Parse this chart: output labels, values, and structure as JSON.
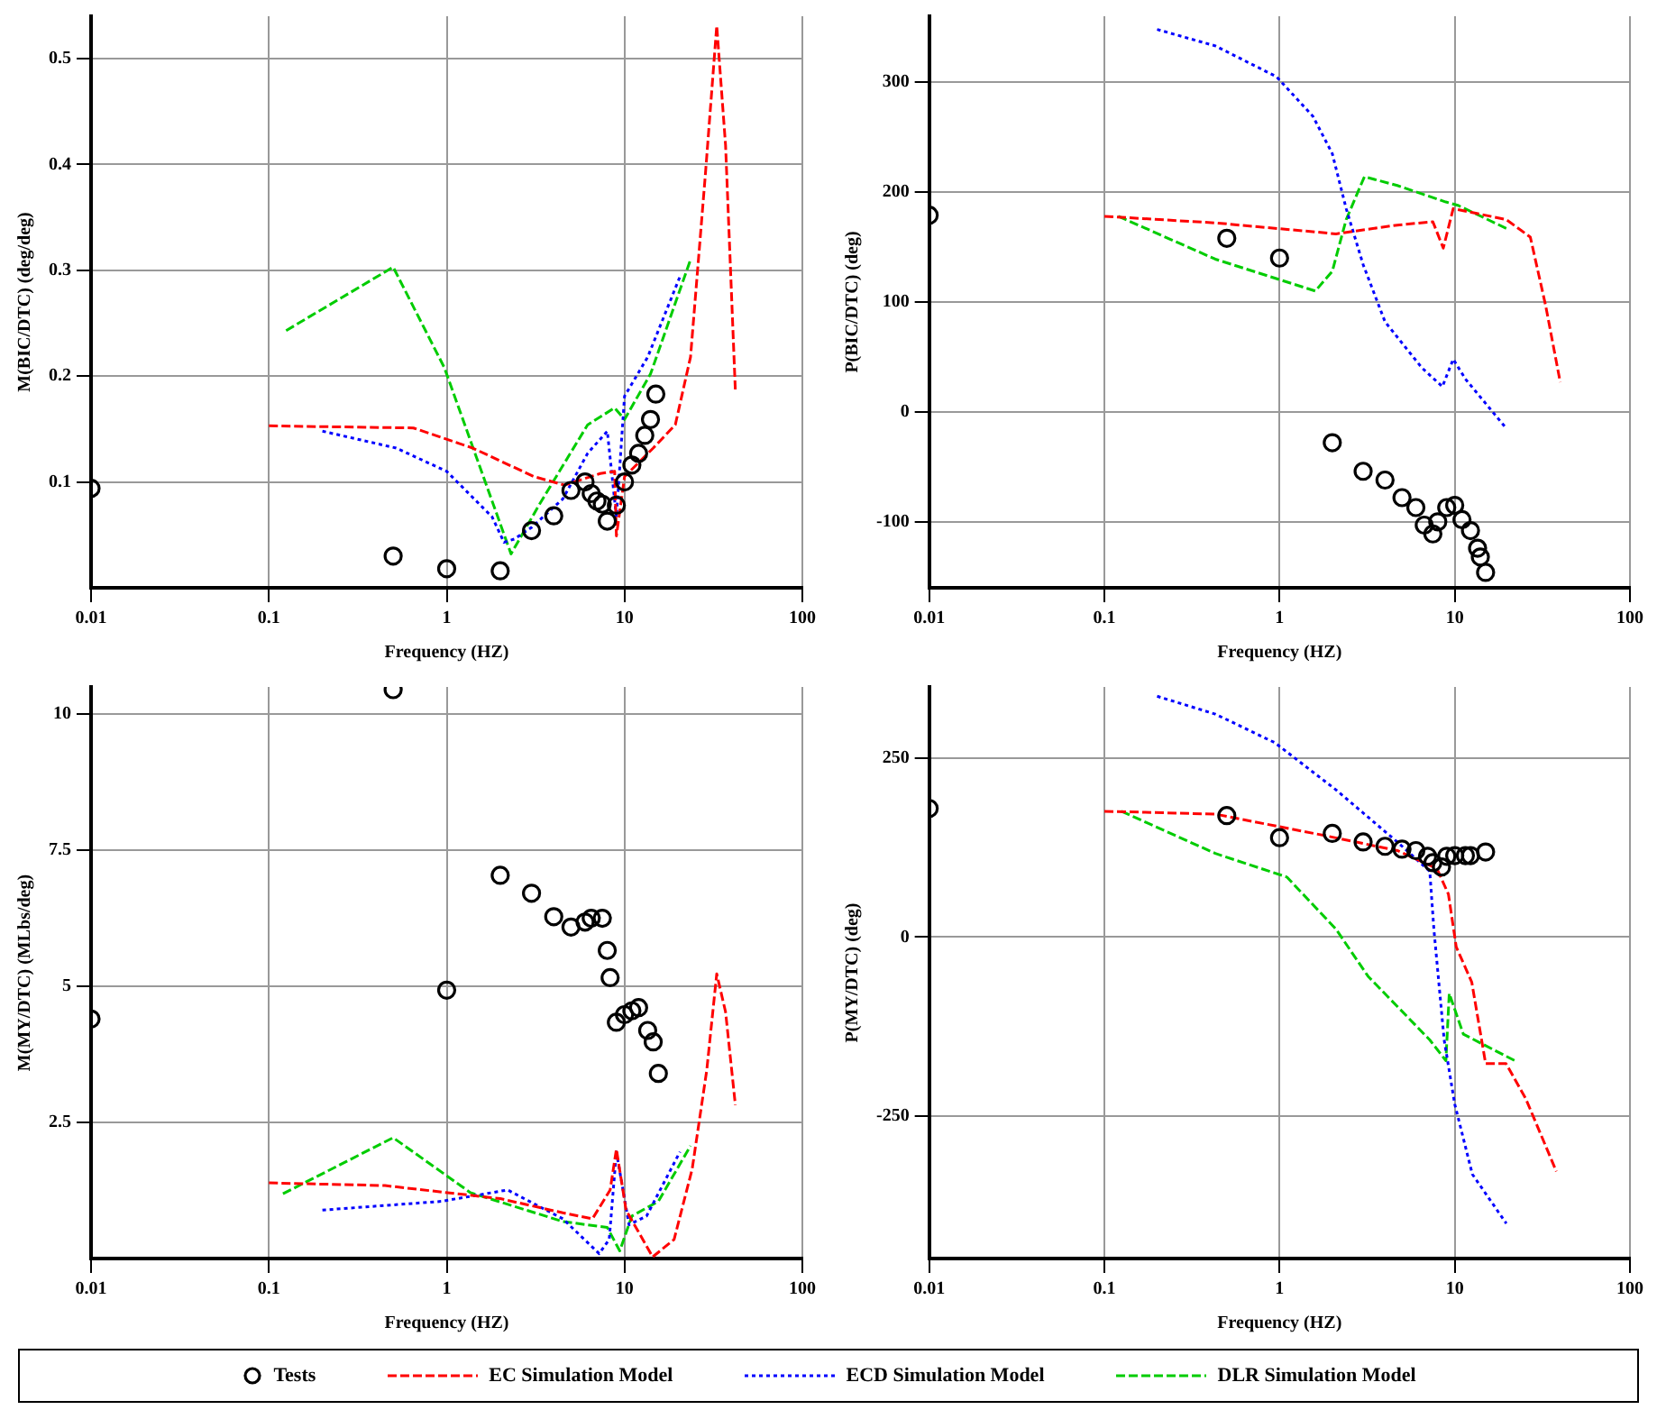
{
  "chart_data": [
    {
      "type": "line",
      "xlabel": "Frequency (HZ)",
      "ylabel": "M(BIC/DTC) (deg/deg)",
      "log": "x",
      "grid": true,
      "legend": "bottom",
      "xlim": [
        0.01,
        100
      ],
      "xticks": [
        0.01,
        0.1,
        1,
        10,
        100
      ],
      "ylim": [
        0,
        0.54
      ],
      "yticks": [
        0.1,
        0.2,
        0.3,
        0.4,
        0.5
      ],
      "series": [
        {
          "name": "Tests",
          "type": "scatter",
          "marker": "circle",
          "color": "#000000",
          "x": [
            0.01,
            0.5,
            1,
            2,
            3,
            4,
            5,
            6,
            6.5,
            7,
            7.5,
            8,
            9,
            10,
            11,
            12,
            13,
            14,
            15
          ],
          "values": [
            0.094,
            0.03,
            0.018,
            0.016,
            0.054,
            0.068,
            0.092,
            0.1,
            0.089,
            0.082,
            0.079,
            0.063,
            0.078,
            0.1,
            0.116,
            0.127,
            0.144,
            0.159,
            0.183
          ]
        },
        {
          "name": "EC Simulation Model",
          "marker": "none",
          "line_style": "dashed",
          "color": "#ff0000",
          "x": [
            0.1,
            0.65,
            1.4,
            3.1,
            4.6,
            7.3,
            8.8,
            9,
            10,
            14.5,
            19.3,
            23.5,
            28.5,
            33,
            37,
            42
          ],
          "values": [
            0.153,
            0.151,
            0.132,
            0.105,
            0.097,
            0.108,
            0.11,
            0.049,
            0.105,
            0.132,
            0.154,
            0.218,
            0.391,
            0.531,
            0.418,
            0.186
          ]
        },
        {
          "name": "ECD Simulation Model",
          "marker": "none",
          "line_style": "dotted",
          "color": "#0000ff",
          "x": [
            0.2,
            0.52,
            1,
            1.8,
            2.1,
            2.4,
            3,
            4.5,
            6.2,
            8,
            9,
            10,
            13.5,
            20.5
          ],
          "values": [
            0.148,
            0.132,
            0.11,
            0.067,
            0.043,
            0.046,
            0.057,
            0.084,
            0.127,
            0.148,
            0.067,
            0.181,
            0.218,
            0.294
          ]
        },
        {
          "name": "DLR Simulation Model",
          "marker": "none",
          "line_style": "dashed",
          "color": "#00cc00",
          "x": [
            0.125,
            0.5,
            0.97,
            2.3,
            3.3,
            6.2,
            8.8,
            10,
            14,
            23.5
          ],
          "values": [
            0.243,
            0.303,
            0.208,
            0.032,
            0.078,
            0.154,
            0.17,
            0.159,
            0.202,
            0.31
          ]
        }
      ]
    },
    {
      "type": "line",
      "xlabel": "Frequency (HZ)",
      "ylabel": "P(BIC/DTC) (deg)",
      "log": "x",
      "grid": true,
      "xlim": [
        0.01,
        100
      ],
      "xticks": [
        0.01,
        0.1,
        1,
        10,
        100
      ],
      "ylim": [
        -160,
        360
      ],
      "yticks": [
        -100,
        0,
        100,
        200,
        300
      ],
      "series": [
        {
          "type": "scatter",
          "marker": "circle",
          "color": "#000000",
          "x": [
            0.01,
            0.5,
            1,
            2,
            3,
            4,
            5,
            6,
            6.7,
            7.5,
            8,
            9,
            10,
            11,
            12.3,
            13.5,
            14,
            15
          ],
          "values": [
            179,
            158,
            140,
            -28,
            -54,
            -62,
            -78,
            -87,
            -103,
            -111,
            -100,
            -87,
            -85,
            -98,
            -108,
            -124,
            -132,
            -146
          ]
        },
        {
          "marker": "none",
          "line_style": "dashed",
          "color": "#ff0000",
          "x": [
            0.1,
            0.43,
            2.1,
            4.7,
            7.5,
            8.6,
            9.8,
            19.7,
            27,
            33,
            40
          ],
          "values": [
            178,
            172,
            162,
            170,
            173,
            149,
            185,
            175,
            159,
            97,
            27
          ]
        },
        {
          "marker": "none",
          "line_style": "dotted",
          "color": "#0000ff",
          "x": [
            0.2,
            0.43,
            0.96,
            1.55,
            2,
            2.4,
            3,
            4,
            6.5,
            8.5,
            9.8,
            11.5,
            19.7
          ],
          "values": [
            348,
            333,
            305,
            269,
            235,
            185,
            134,
            82,
            40,
            23,
            48,
            30,
            -15
          ]
        },
        {
          "marker": "none",
          "line_style": "dashed",
          "color": "#00cc00",
          "x": [
            0.12,
            0.43,
            1.6,
            2,
            2.4,
            3.05,
            4.7,
            8.9,
            10.4,
            19.7
          ],
          "values": [
            178,
            139,
            110,
            128,
            175,
            214,
            206,
            191,
            188,
            167
          ]
        }
      ]
    },
    {
      "type": "line",
      "xlabel": "Frequency (HZ)",
      "ylabel": "M(MY/DTC) (MLbs/deg)",
      "log": "x",
      "grid": true,
      "xlim": [
        0.01,
        100
      ],
      "xticks": [
        0.01,
        0.1,
        1,
        10,
        100
      ],
      "ylim": [
        0,
        10.5
      ],
      "yticks": [
        2.5,
        5,
        7.5,
        10
      ],
      "series": [
        {
          "type": "scatter",
          "marker": "circle",
          "color": "#000000",
          "x": [
            0.01,
            0.5,
            1,
            2,
            3,
            4,
            5,
            6,
            6.5,
            7.5,
            8,
            8.3,
            9,
            10,
            11,
            12,
            13.5,
            14.5,
            15.5
          ],
          "values": [
            4.4,
            10.45,
            4.93,
            7.04,
            6.71,
            6.28,
            6.09,
            6.18,
            6.25,
            6.25,
            5.66,
            5.16,
            4.34,
            4.48,
            4.55,
            4.61,
            4.19,
            3.98,
            3.4
          ]
        },
        {
          "marker": "none",
          "line_style": "dashed",
          "color": "#ff0000",
          "x": [
            0.1,
            0.45,
            2,
            4.5,
            6.6,
            8.3,
            9,
            10.2,
            14.4,
            19,
            24,
            29,
            33,
            37,
            42
          ],
          "values": [
            1.39,
            1.34,
            1.1,
            0.84,
            0.73,
            1.26,
            2.01,
            0.89,
            0.03,
            0.35,
            1.64,
            3.46,
            5.23,
            4.53,
            2.82
          ]
        },
        {
          "marker": "none",
          "line_style": "dotted",
          "color": "#0000ff",
          "x": [
            0.2,
            0.93,
            2.2,
            4.5,
            7.2,
            8.2,
            9,
            10.6,
            13.3,
            20.5
          ],
          "values": [
            0.89,
            1.05,
            1.26,
            0.73,
            0.09,
            0.35,
            1.96,
            0.62,
            0.78,
            1.96
          ]
        },
        {
          "marker": "none",
          "line_style": "dashed",
          "color": "#00cc00",
          "x": [
            0.12,
            0.5,
            1.36,
            4.5,
            8,
            9.4,
            11,
            15.5,
            23.5
          ],
          "values": [
            1.19,
            2.22,
            1.21,
            0.68,
            0.57,
            0.14,
            0.78,
            1.05,
            2.07
          ]
        }
      ]
    },
    {
      "type": "line",
      "xlabel": "Frequency (HZ)",
      "ylabel": "P(MY/DTC) (deg)",
      "log": "x",
      "grid": true,
      "xlim": [
        0.01,
        100
      ],
      "xticks": [
        0.01,
        0.1,
        1,
        10,
        100
      ],
      "ylim": [
        -450,
        350
      ],
      "yticks": [
        -250,
        0,
        250
      ],
      "series": [
        {
          "type": "scatter",
          "marker": "circle",
          "color": "#000000",
          "x": [
            0.01,
            0.5,
            1,
            2,
            3,
            4,
            5,
            6,
            7,
            7.5,
            8.4,
            9,
            10,
            11.5,
            12.3,
            15
          ],
          "values": [
            180,
            170,
            139,
            145,
            133,
            127,
            123,
            121,
            113,
            104,
            98,
            113,
            114,
            114,
            114,
            119
          ]
        },
        {
          "marker": "none",
          "line_style": "dashed",
          "color": "#ff0000",
          "x": [
            0.1,
            0.43,
            1.9,
            4.7,
            7.9,
            9.2,
            10.2,
            12.5,
            15,
            19.6,
            25.4,
            38
          ],
          "values": [
            176,
            172,
            141,
            121,
            96,
            60,
            -14,
            -63,
            -177,
            -177,
            -226,
            -328
          ]
        },
        {
          "marker": "none",
          "line_style": "dotted",
          "color": "#0000ff",
          "x": [
            0.2,
            0.43,
            0.94,
            2.1,
            4.7,
            7.2,
            7.6,
            8.7,
            10,
            12.6,
            19.7
          ],
          "values": [
            337,
            312,
            272,
            206,
            133,
            92,
            11,
            -144,
            -234,
            -332,
            -401
          ]
        },
        {
          "marker": "none",
          "line_style": "dashed",
          "color": "#00cc00",
          "x": [
            0.125,
            0.43,
            1.1,
            2.1,
            3.2,
            7.2,
            8.9,
            9.3,
            11.2,
            22
          ],
          "values": [
            176,
            117,
            84,
            11,
            -55,
            -144,
            -173,
            -79,
            -136,
            -173
          ]
        }
      ]
    }
  ]
}
